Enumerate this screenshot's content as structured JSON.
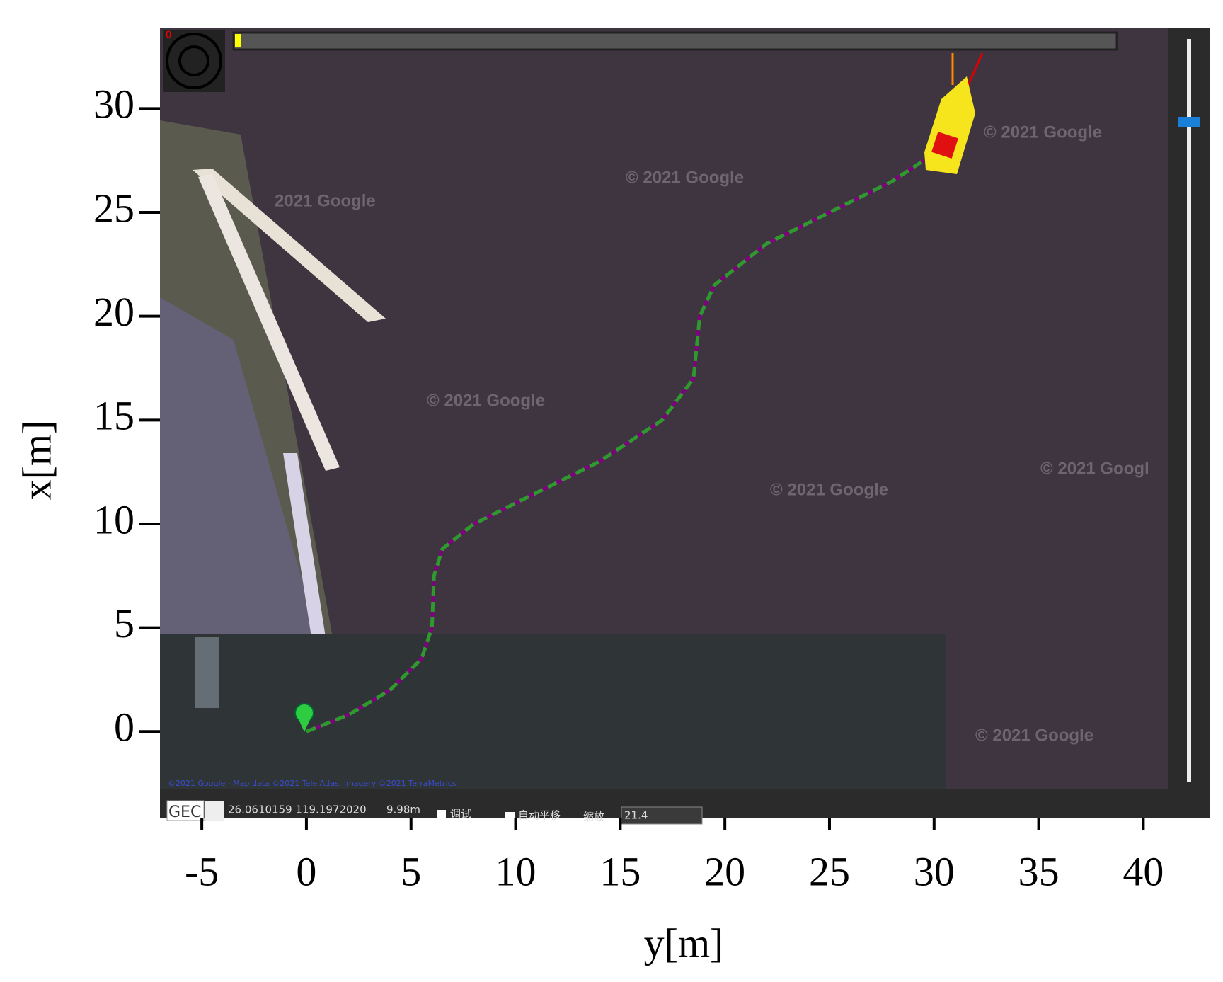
{
  "chart_data": {
    "type": "line",
    "x_label": "y[m]",
    "y_label": "x[m]",
    "x": [
      0,
      2,
      4,
      5.5,
      6,
      6.1,
      6.5,
      8,
      11,
      14,
      17,
      18.5,
      18.8,
      19.5,
      22,
      25,
      28,
      29.5
    ],
    "series": [
      {
        "color": "#800080",
        "dash": false,
        "values": [
          0,
          0.8,
          2,
          3.5,
          5,
          7.5,
          8.8,
          10,
          11.5,
          13,
          15,
          17,
          20,
          21.5,
          23.5,
          25,
          26.5,
          27.5
        ]
      },
      {
        "color": "#2e9a2e",
        "dash": true,
        "values": [
          0,
          0.8,
          2,
          3.5,
          5,
          7.5,
          8.8,
          10,
          11.5,
          13,
          15,
          17,
          20,
          21.5,
          23.5,
          25,
          26.5,
          27.5
        ]
      }
    ],
    "xlim": [
      -7,
      43.2
    ],
    "ylim": [
      -4.15,
      33.9
    ],
    "xticks": [
      -5,
      0,
      5,
      10,
      15,
      20,
      25,
      30,
      35,
      40
    ],
    "yticks": [
      0,
      5,
      10,
      15,
      20,
      25,
      30
    ]
  },
  "screen": {
    "counter": "0",
    "watermarks": [
      "© 2021 Google",
      "© 2021 Google",
      "2021 Google",
      "© 2021 Google",
      "© 2021 Google",
      "© 2021 Googl",
      "© 2021 Google"
    ],
    "attribution": "©2021 Google - Map data ©2021 Tele Atlas, Imagery ©2021 TerraMetrics",
    "toolbar": {
      "mode": "GEC",
      "coords": "26.0610159  119.1972020",
      "scale": "9.98m",
      "debug": "调试",
      "autopan": "自动平移",
      "zoom_label": "缩放",
      "zoom": "21.4"
    }
  }
}
